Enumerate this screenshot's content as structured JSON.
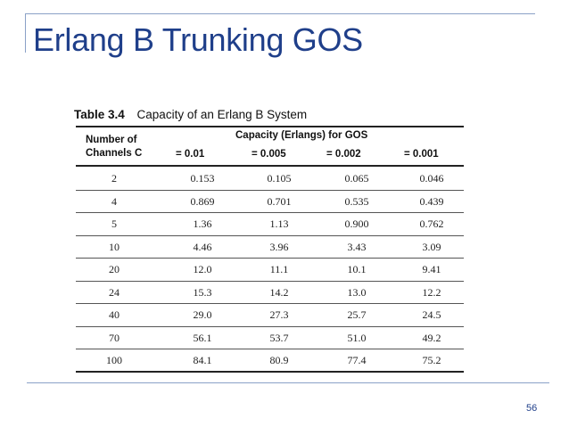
{
  "slide": {
    "title": "Erlang B Trunking GOS",
    "page_number": "56"
  },
  "table": {
    "caption_number": "Table 3.4",
    "caption_text": "Capacity of an Erlang B System",
    "header": {
      "channels_line1": "Number of",
      "channels_line2": "Channels C",
      "group_label": "Capacity (Erlangs) for GOS",
      "gos_columns": [
        "= 0.01",
        "= 0.005",
        "= 0.002",
        "= 0.001"
      ]
    },
    "rows": [
      [
        "2",
        "0.153",
        "0.105",
        "0.065",
        "0.046"
      ],
      [
        "4",
        "0.869",
        "0.701",
        "0.535",
        "0.439"
      ],
      [
        "5",
        "1.36",
        "1.13",
        "0.900",
        "0.762"
      ],
      [
        "10",
        "4.46",
        "3.96",
        "3.43",
        "3.09"
      ],
      [
        "20",
        "12.0",
        "11.1",
        "10.1",
        "9.41"
      ],
      [
        "24",
        "15.3",
        "14.2",
        "13.0",
        "12.2"
      ],
      [
        "40",
        "29.0",
        "27.3",
        "25.7",
        "24.5"
      ],
      [
        "70",
        "56.1",
        "53.7",
        "51.0",
        "49.2"
      ],
      [
        "100",
        "84.1",
        "80.9",
        "77.4",
        "75.2"
      ]
    ]
  }
}
